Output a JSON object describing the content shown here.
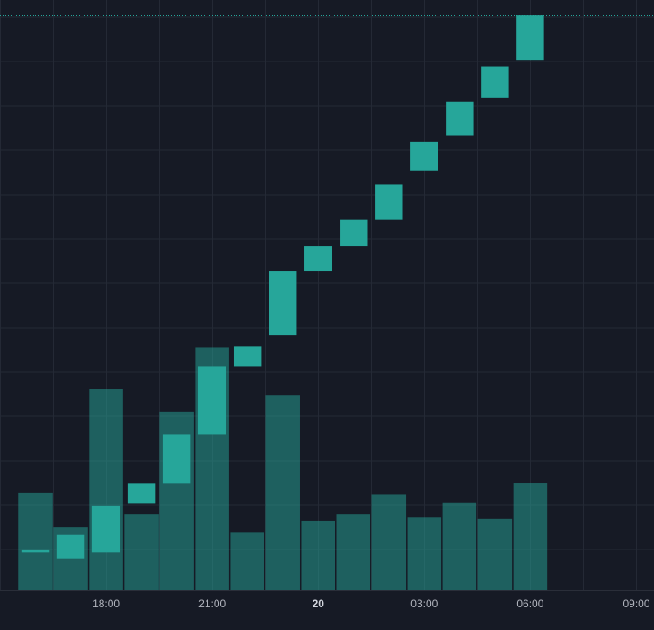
{
  "colors": {
    "background": "#161a25",
    "grid": "#242935",
    "up_candle": "#26a69a",
    "volume_bar": "#26a69a",
    "axis_text": "#b2b5be",
    "price_line": "#26a69a"
  },
  "chart_data": [
    {
      "type": "candlestick",
      "x_unit": "hours since 15:00",
      "x": [
        1,
        2,
        3,
        4,
        5,
        6,
        7,
        8,
        9,
        10,
        11,
        12,
        13,
        14,
        15
      ],
      "candles": [
        {
          "open": 26.4,
          "close": 26.3,
          "high": 26.4,
          "low": 26.3
        },
        {
          "open": 26.0,
          "close": 27.1,
          "high": 27.1,
          "low": 26.0
        },
        {
          "open": 26.3,
          "close": 28.4,
          "high": 28.4,
          "low": 26.3
        },
        {
          "open": 28.5,
          "close": 29.4,
          "high": 29.4,
          "low": 28.5
        },
        {
          "open": 29.4,
          "close": 31.6,
          "high": 31.6,
          "low": 29.4
        },
        {
          "open": 31.6,
          "close": 34.7,
          "high": 34.7,
          "low": 31.6
        },
        {
          "open": 34.7,
          "close": 35.6,
          "high": 35.6,
          "low": 34.7
        },
        {
          "open": 36.1,
          "close": 39.0,
          "high": 39.0,
          "low": 36.1
        },
        {
          "open": 39.0,
          "close": 40.1,
          "high": 40.1,
          "low": 39.0
        },
        {
          "open": 40.1,
          "close": 41.3,
          "high": 41.3,
          "low": 40.1
        },
        {
          "open": 41.3,
          "close": 42.9,
          "high": 42.9,
          "low": 41.3
        },
        {
          "open": 43.5,
          "close": 44.8,
          "high": 44.8,
          "low": 43.5
        },
        {
          "open": 45.1,
          "close": 46.6,
          "high": 46.6,
          "low": 45.1
        },
        {
          "open": 46.8,
          "close": 48.2,
          "high": 48.2,
          "low": 46.8
        },
        {
          "open": 48.5,
          "close": 50.5,
          "high": 50.5,
          "low": 48.5
        }
      ],
      "price_range": [
        24.6,
        51.2
      ],
      "last_price": 50.5,
      "grid": true
    },
    {
      "type": "bar",
      "name": "volume",
      "x_unit": "hours since 15:00",
      "x": [
        1,
        2,
        3,
        4,
        5,
        6,
        7,
        8,
        9,
        10,
        11,
        12,
        13,
        14,
        15
      ],
      "values": [
        69,
        45,
        143,
        54,
        127,
        173,
        41,
        139,
        49,
        54,
        68,
        52,
        62,
        51,
        76
      ],
      "ylim": [
        0,
        420
      ]
    }
  ],
  "x_axis": {
    "range_hours": [
      0,
      18.5
    ],
    "ticks": [
      {
        "hour": 3,
        "label": "18:00",
        "bold": false
      },
      {
        "hour": 6,
        "label": "21:00",
        "bold": false
      },
      {
        "hour": 9,
        "label": "20",
        "bold": true
      },
      {
        "hour": 12,
        "label": "03:00",
        "bold": false
      },
      {
        "hour": 15,
        "label": "06:00",
        "bold": false
      },
      {
        "hour": 18,
        "label": "09:00",
        "bold": false
      }
    ]
  }
}
